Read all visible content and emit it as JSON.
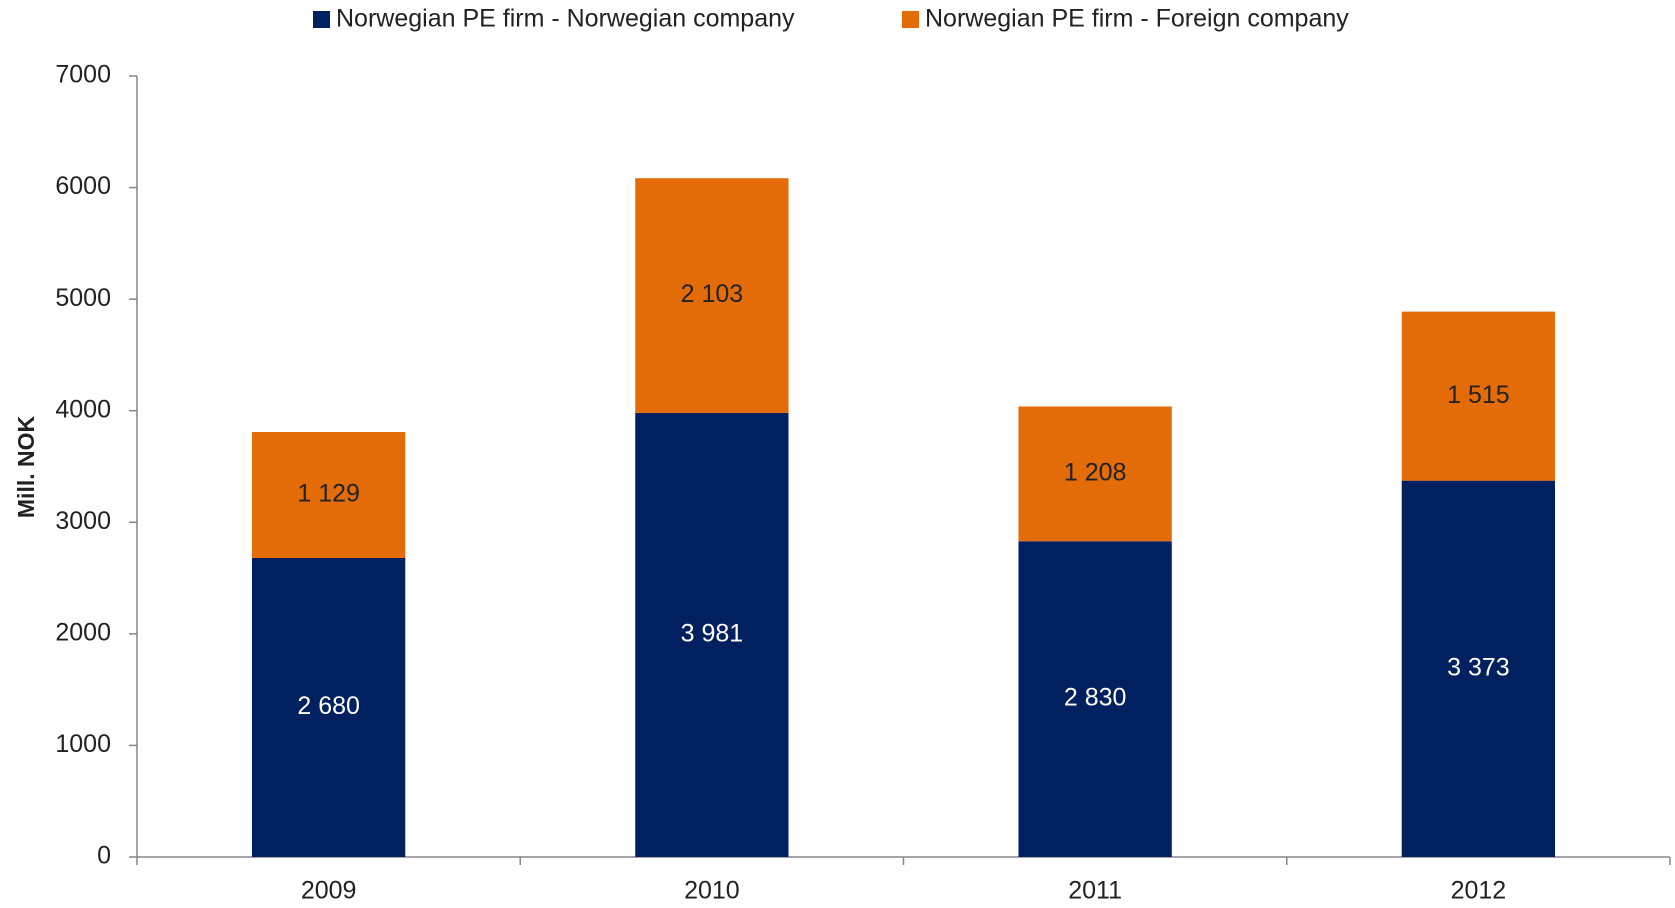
{
  "chart_data": {
    "type": "stacked_bar",
    "y_label": "Mill. NOK",
    "categories": [
      "2009",
      "2010",
      "2011",
      "2012"
    ],
    "series": [
      {
        "name": "Norwegian PE firm - Norwegian company",
        "color": "#002060",
        "values": [
          2680,
          3981,
          2830,
          3373
        ],
        "value_labels": [
          "2 680",
          "3 981",
          "2 830",
          "3 373"
        ]
      },
      {
        "name": "Norwegian PE firm - Foreign company",
        "color": "#e36c09",
        "values": [
          1129,
          2103,
          1208,
          1515
        ],
        "value_labels": [
          "1 129",
          "2 103",
          "1 208",
          "1 515"
        ]
      }
    ],
    "ylim": [
      0,
      7000
    ],
    "yticks": [
      0,
      1000,
      2000,
      3000,
      4000,
      5000,
      6000,
      7000
    ],
    "legend": "top"
  }
}
